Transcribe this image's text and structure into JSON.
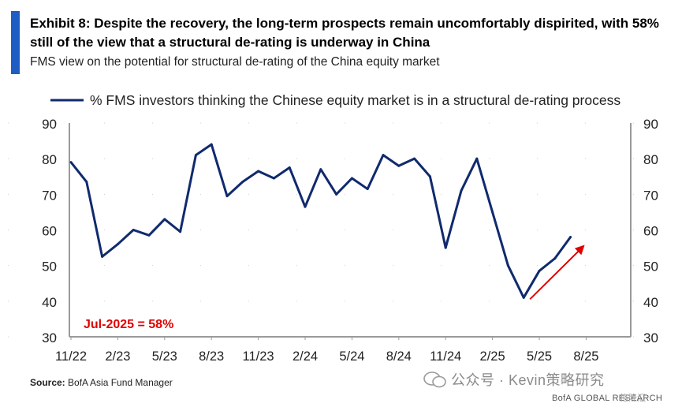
{
  "header": {
    "title": "Exhibit 8: Despite the recovery, the long-term prospects remain uncomfortably dispirited, with 58% still of the view that a structural de-rating is underway in China",
    "subtitle": "FMS view on the potential for structural de-rating of the China equity market"
  },
  "chart_data": {
    "type": "line",
    "title": "",
    "legend": "% FMS investors thinking the Chinese equity market is in a structural de-rating process",
    "ylim": [
      30,
      90
    ],
    "yticks": [
      "30",
      "40",
      "50",
      "60",
      "70",
      "80",
      "90"
    ],
    "x_tick_labels": [
      "11/22",
      "2/23",
      "5/23",
      "8/23",
      "11/23",
      "2/24",
      "5/24",
      "8/24",
      "11/24",
      "2/25",
      "5/25",
      "8/25"
    ],
    "series": [
      {
        "name": "% FMS investors thinking the Chinese equity market is in a structural de-rating process",
        "x": [
          "Nov-22",
          "Dec-22",
          "Jan-23",
          "Feb-23",
          "Mar-23",
          "Apr-23",
          "May-23",
          "Jun-23",
          "Jul-23",
          "Aug-23",
          "Sep-23",
          "Oct-23",
          "Nov-23",
          "Dec-23",
          "Jan-24",
          "Feb-24",
          "Mar-24",
          "Apr-24",
          "May-24",
          "Jun-24",
          "Jul-24",
          "Aug-24",
          "Sep-24",
          "Oct-24",
          "Nov-24",
          "Dec-24",
          "Jan-25",
          "Feb-25",
          "Mar-25",
          "Apr-25",
          "May-25",
          "Jun-25",
          "Jul-25"
        ],
        "values": [
          79,
          73.5,
          52.5,
          56,
          60,
          58.5,
          63,
          59.5,
          81,
          84,
          69.5,
          73.5,
          76.5,
          74.5,
          77.5,
          66.5,
          77,
          70,
          74.5,
          71.5,
          81,
          78,
          80,
          75,
          55,
          71,
          80,
          65,
          50,
          41,
          48.5,
          52,
          58
        ]
      }
    ],
    "annotation": {
      "text": "Jul-2025 = 58%",
      "color": "#e00000"
    },
    "trend_arrow": {
      "color": "#e00000",
      "from_index": 29,
      "to_index": 32
    },
    "line_color": "#102a6e"
  },
  "source": {
    "label": "Source:",
    "text": " BofA Asia Fund Manager"
  },
  "watermark": {
    "text": "公众号 · Kevin策略研究"
  },
  "footer": {
    "brand": "BofA GLOBAL RESEARCH",
    "badge": "格隆汇"
  }
}
